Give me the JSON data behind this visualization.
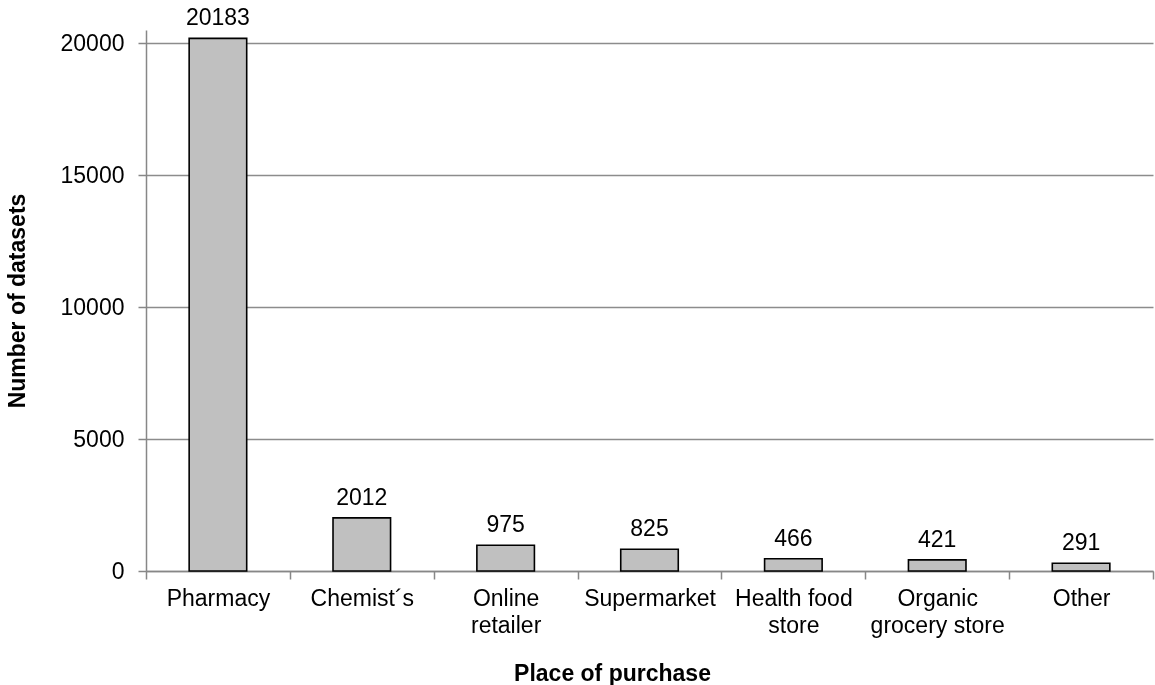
{
  "chart_data": {
    "type": "bar",
    "xlabel": "Place of purchase",
    "ylabel": "Number of datasets",
    "categories": [
      "Pharmacy",
      "Chemist´s",
      "Online retailer",
      "Supermarket",
      "Health food store",
      "Organic grocery store",
      "Other"
    ],
    "values": [
      20183,
      2012,
      975,
      825,
      466,
      421,
      291
    ],
    "color": "#c0c0c0",
    "ylim": [
      0,
      20500
    ],
    "yticks": [
      0,
      5000,
      10000,
      15000,
      20000
    ],
    "grid": "y",
    "data_labels": true
  }
}
